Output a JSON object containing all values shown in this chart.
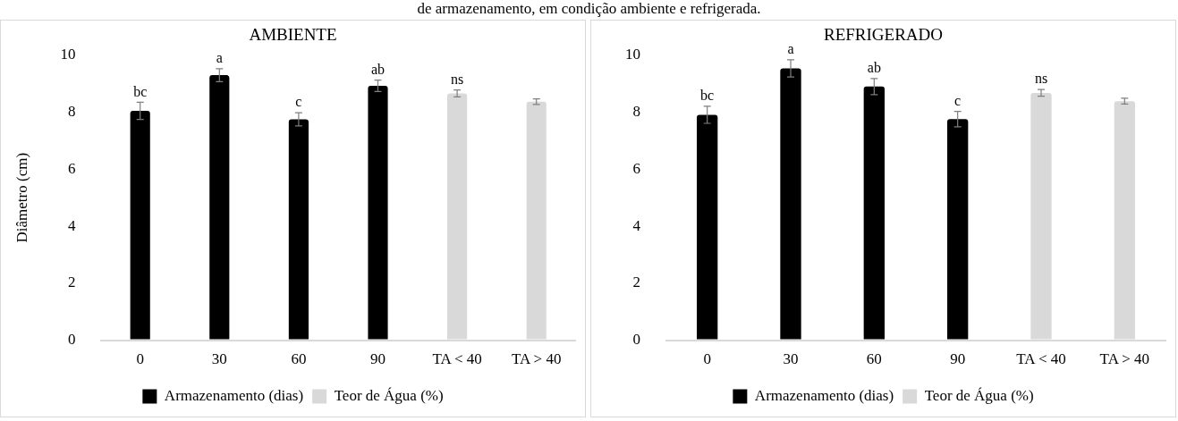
{
  "chart_data": [
    {
      "type": "bar",
      "title": "AMBIENTE",
      "ylabel": "Diâmetro (cm)",
      "annotations": [
        "de armazenamento, em condição ambiente e refrigerada."
      ],
      "categories": [
        "0",
        "30",
        "60",
        "90",
        "TA < 40",
        "TA > 40"
      ],
      "ylim": [
        0,
        10
      ],
      "yticks": [
        0,
        2,
        4,
        6,
        8,
        10
      ],
      "grid": false,
      "legend": "bottom",
      "series": [
        {
          "name": "Armazenamento (dias)",
          "color": "#000000",
          "values": [
            8.05,
            9.3,
            7.75,
            8.93,
            null,
            null
          ],
          "errors": [
            0.3,
            0.23,
            0.23,
            0.2,
            null,
            null
          ],
          "value_labels": [
            "bc",
            "a",
            "c",
            "ab",
            null,
            null
          ]
        },
        {
          "name": "Teor de Água (%)",
          "color": "#d9d9d9",
          "values": [
            null,
            null,
            null,
            null,
            8.66,
            8.37
          ],
          "errors": [
            null,
            null,
            null,
            null,
            0.12,
            0.1
          ],
          "value_labels": [
            null,
            null,
            null,
            null,
            "ns",
            null
          ]
        }
      ]
    },
    {
      "type": "bar",
      "title": "REFRIGERADO",
      "categories": [
        "0",
        "30",
        "60",
        "90",
        "TA < 40",
        "TA > 40"
      ],
      "ylim": [
        0,
        10
      ],
      "yticks": [
        0,
        2,
        4,
        6,
        8,
        10
      ],
      "grid": false,
      "legend": "bottom",
      "series": [
        {
          "name": "Armazenamento (dias)",
          "color": "#000000",
          "values": [
            7.91,
            9.54,
            8.9,
            7.76,
            null,
            null
          ],
          "errors": [
            0.3,
            0.3,
            0.28,
            0.27,
            null,
            null
          ],
          "value_labels": [
            "bc",
            "a",
            "ab",
            "c",
            null,
            null
          ]
        },
        {
          "name": "Teor de Água (%)",
          "color": "#d9d9d9",
          "values": [
            null,
            null,
            null,
            null,
            8.68,
            8.39
          ],
          "errors": [
            null,
            null,
            null,
            null,
            0.12,
            0.1
          ],
          "value_labels": [
            null,
            null,
            null,
            null,
            "ns",
            null
          ]
        }
      ]
    }
  ]
}
